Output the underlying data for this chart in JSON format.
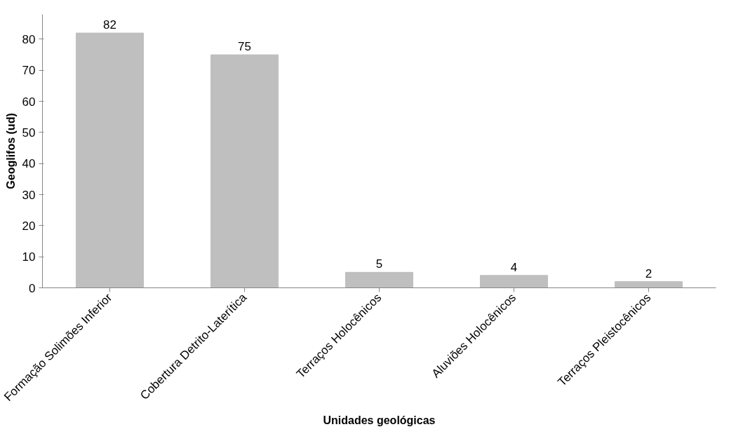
{
  "chart_data": {
    "type": "bar",
    "xlabel": "Unidades geológicas",
    "ylabel": "Geoglifos (ud)",
    "categories": [
      "Formação Solimões Inferior",
      "Cobertura Detrito-Laterítica",
      "Terraços Holocênicos",
      "Aluviões Holocênicos",
      "Terraços Pleistocênicos"
    ],
    "values": [
      82,
      75,
      5,
      4,
      2
    ],
    "color": "#bfbfbf",
    "ylim": [
      0,
      88
    ],
    "yticks": [
      0,
      10,
      20,
      30,
      40,
      50,
      60,
      70,
      80
    ],
    "grid": false,
    "data_labels": true
  }
}
